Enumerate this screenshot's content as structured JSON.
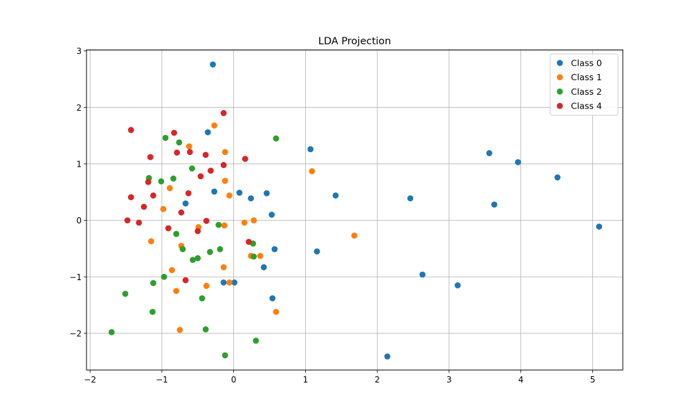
{
  "chart_data": {
    "type": "scatter",
    "title": "LDA Projection",
    "xlabel": "",
    "ylabel": "",
    "xlim": [
      -2.05,
      5.42
    ],
    "ylim": [
      -2.65,
      3.02
    ],
    "xticks": [
      -2,
      -1,
      0,
      1,
      2,
      3,
      4,
      5
    ],
    "yticks": [
      -2,
      -1,
      0,
      1,
      2,
      3
    ],
    "xtick_labels": [
      "−2",
      "−1",
      "0",
      "1",
      "2",
      "3",
      "4",
      "5"
    ],
    "ytick_labels": [
      "−2",
      "−1",
      "0",
      "1",
      "2",
      "3"
    ],
    "grid": true,
    "legend_position": "top-right",
    "series": [
      {
        "name": "Class 0",
        "color": "#1f77b4",
        "points": [
          [
            -0.29,
            2.76
          ],
          [
            -0.36,
            1.56
          ],
          [
            1.07,
            1.26
          ],
          [
            3.56,
            1.19
          ],
          [
            3.96,
            1.03
          ],
          [
            4.51,
            0.76
          ],
          [
            1.42,
            0.44
          ],
          [
            2.46,
            0.39
          ],
          [
            3.63,
            0.28
          ],
          [
            -0.27,
            0.51
          ],
          [
            0.08,
            0.49
          ],
          [
            0.46,
            0.48
          ],
          [
            0.24,
            0.39
          ],
          [
            -0.67,
            0.3
          ],
          [
            0.53,
            0.1
          ],
          [
            5.09,
            -0.11
          ],
          [
            0.57,
            -0.51
          ],
          [
            1.16,
            -0.55
          ],
          [
            0.42,
            -0.83
          ],
          [
            2.63,
            -0.96
          ],
          [
            3.12,
            -1.15
          ],
          [
            -0.14,
            -1.1
          ],
          [
            0.01,
            -1.1
          ],
          [
            0.54,
            -1.38
          ],
          [
            2.14,
            -2.41
          ]
        ]
      },
      {
        "name": "Class 1",
        "color": "#ff7f0e",
        "points": [
          [
            -0.27,
            1.68
          ],
          [
            -0.62,
            1.31
          ],
          [
            -0.12,
            1.21
          ],
          [
            1.09,
            0.87
          ],
          [
            -0.12,
            0.7
          ],
          [
            -0.89,
            0.57
          ],
          [
            -0.06,
            0.44
          ],
          [
            -0.98,
            0.2
          ],
          [
            0.15,
            -0.04
          ],
          [
            0.28,
            0.0
          ],
          [
            -0.49,
            -0.12
          ],
          [
            -0.13,
            -0.09
          ],
          [
            -1.15,
            -0.37
          ],
          [
            -0.73,
            -0.45
          ],
          [
            1.68,
            -0.27
          ],
          [
            0.24,
            -0.63
          ],
          [
            0.37,
            -0.63
          ],
          [
            -0.14,
            -0.83
          ],
          [
            -0.86,
            -0.88
          ],
          [
            -0.06,
            -1.1
          ],
          [
            -0.38,
            -1.16
          ],
          [
            -0.8,
            -1.25
          ],
          [
            -0.75,
            -1.94
          ],
          [
            0.59,
            -1.62
          ]
        ]
      },
      {
        "name": "Class 2",
        "color": "#2ca02c",
        "points": [
          [
            -0.95,
            1.46
          ],
          [
            -0.76,
            1.38
          ],
          [
            0.59,
            1.45
          ],
          [
            -0.58,
            0.92
          ],
          [
            -1.18,
            0.75
          ],
          [
            -0.84,
            0.74
          ],
          [
            -1.01,
            0.69
          ],
          [
            -0.8,
            -0.24
          ],
          [
            -0.21,
            -0.08
          ],
          [
            -0.71,
            -0.51
          ],
          [
            -0.19,
            -0.51
          ],
          [
            -0.33,
            -0.56
          ],
          [
            0.27,
            -0.41
          ],
          [
            0.28,
            -0.64
          ],
          [
            -0.5,
            -0.67
          ],
          [
            -0.57,
            -0.7
          ],
          [
            -0.97,
            -1.0
          ],
          [
            -1.12,
            -1.11
          ],
          [
            -0.44,
            -1.38
          ],
          [
            -1.51,
            -1.3
          ],
          [
            -1.13,
            -1.62
          ],
          [
            -0.39,
            -1.93
          ],
          [
            -1.7,
            -1.98
          ],
          [
            0.31,
            -2.13
          ],
          [
            -0.12,
            -2.39
          ]
        ]
      },
      {
        "name": "Class 4",
        "color": "#d62728",
        "points": [
          [
            -0.14,
            1.9
          ],
          [
            -1.43,
            1.6
          ],
          [
            -0.83,
            1.55
          ],
          [
            -0.79,
            1.2
          ],
          [
            -0.61,
            1.21
          ],
          [
            -0.39,
            1.16
          ],
          [
            -1.16,
            1.12
          ],
          [
            0.16,
            1.09
          ],
          [
            -0.14,
            0.98
          ],
          [
            -0.32,
            0.88
          ],
          [
            -0.46,
            0.78
          ],
          [
            -1.19,
            0.68
          ],
          [
            -0.63,
            0.48
          ],
          [
            -1.12,
            0.44
          ],
          [
            -1.43,
            0.41
          ],
          [
            -1.25,
            0.24
          ],
          [
            -0.73,
            0.14
          ],
          [
            -1.48,
            0.0
          ],
          [
            -1.32,
            -0.04
          ],
          [
            -0.38,
            -0.01
          ],
          [
            -0.91,
            -0.14
          ],
          [
            -0.5,
            -0.19
          ],
          [
            0.21,
            -0.38
          ],
          [
            -0.67,
            -1.06
          ]
        ]
      }
    ]
  }
}
